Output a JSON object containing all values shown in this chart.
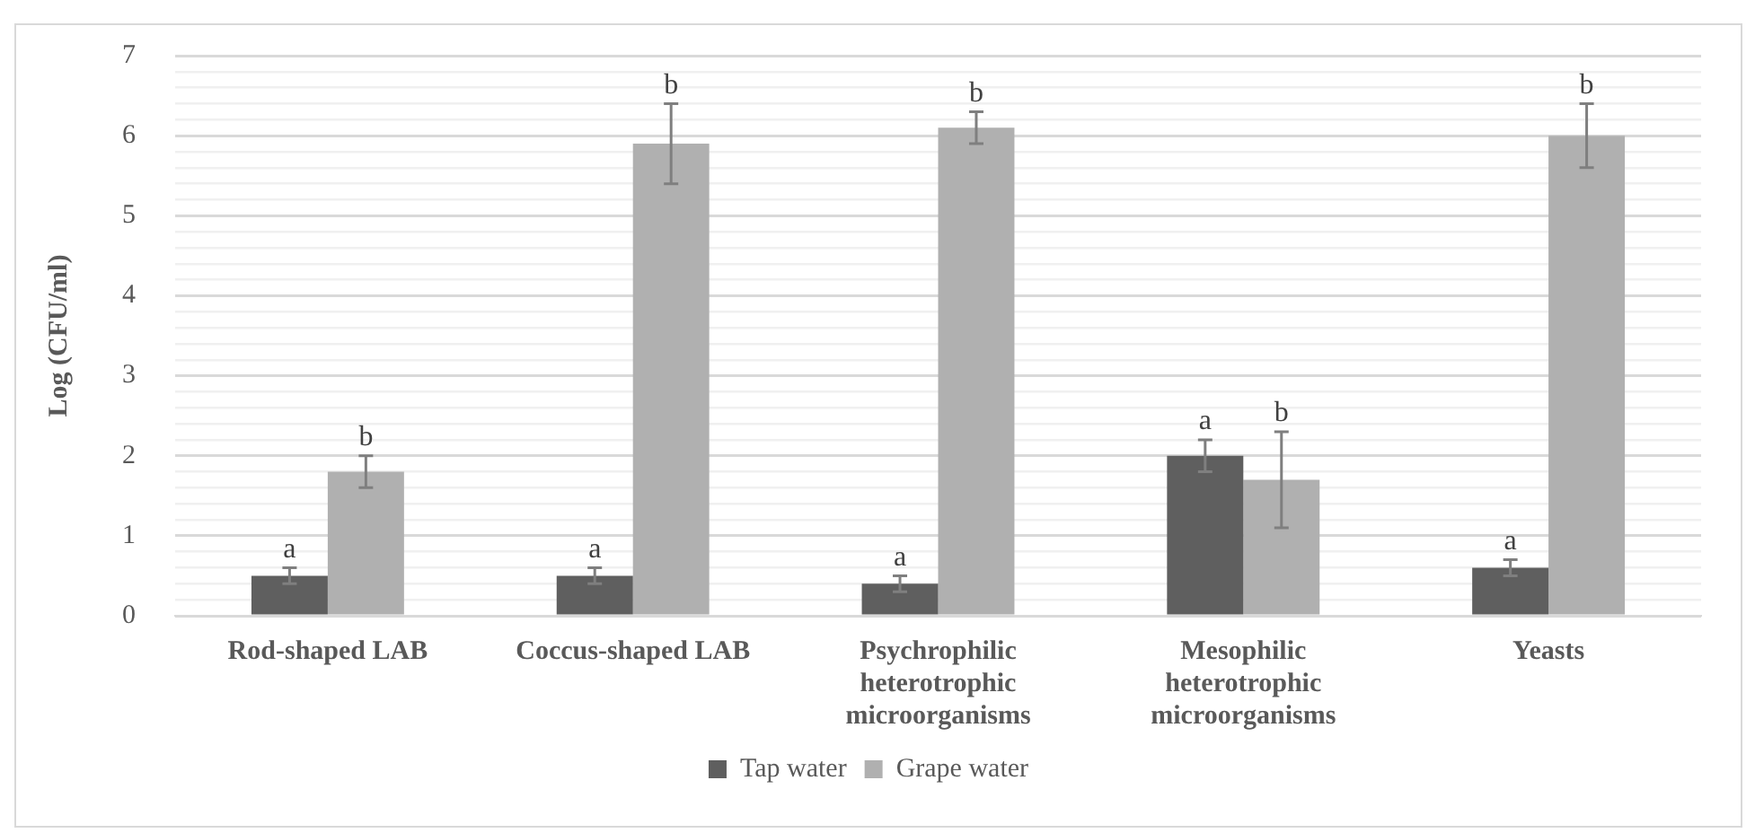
{
  "chart_data": {
    "type": "bar",
    "ylabel": "Log (CFU/ml)",
    "categories": [
      "Rod-shaped LAB",
      "Coccus-shaped LAB",
      "Psychrophilic heterotrophic microorganisms",
      "Mesophilic heterotrophic microorganisms",
      "Yeasts"
    ],
    "series": [
      {
        "name": "Tap water",
        "color": "#5f5f5f",
        "values": [
          0.5,
          0.5,
          0.4,
          2.0,
          0.6
        ],
        "errors": [
          0.1,
          0.1,
          0.1,
          0.2,
          0.1
        ]
      },
      {
        "name": "Grape water",
        "color": "#b0b0b0",
        "values": [
          1.8,
          5.9,
          6.1,
          1.7,
          6.0
        ],
        "errors": [
          0.2,
          0.5,
          0.2,
          0.6,
          0.4
        ]
      }
    ],
    "ylim": [
      0,
      7
    ],
    "yticks": [
      0,
      1,
      2,
      3,
      4,
      5,
      6,
      7
    ],
    "grid": "y",
    "legend": "bottom",
    "annotations": [
      {
        "text": "a",
        "x": "Rod-shaped LAB",
        "y": 0.5
      },
      {
        "text": "b",
        "x": "Rod-shaped LAB",
        "y": 1.8
      },
      {
        "text": "a",
        "x": "Coccus-shaped LAB",
        "y": 0.5
      },
      {
        "text": "b",
        "x": "Coccus-shaped LAB",
        "y": 5.9
      },
      {
        "text": "a",
        "x": "Psychrophilic heterotrophic microorganisms",
        "y": 0.4
      },
      {
        "text": "b",
        "x": "Psychrophilic heterotrophic microorganisms",
        "y": 6.1
      },
      {
        "text": "a",
        "x": "Mesophilic heterotrophic microorganisms",
        "y": 2.0
      },
      {
        "text": "b",
        "x": "Mesophilic heterotrophic microorganisms",
        "y": 1.7
      },
      {
        "text": "a",
        "x": "Yeasts",
        "y": 0.6
      },
      {
        "text": "b",
        "x": "Yeasts",
        "y": 6.0
      }
    ]
  }
}
